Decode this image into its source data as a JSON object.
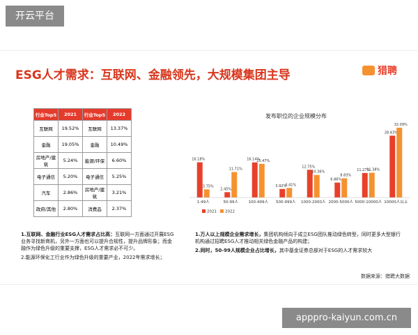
{
  "watermark": "开云平台",
  "footer_url": "apppro-kaiyun.com.cn",
  "title": "ESG人才需求：互联网、金融领先，大规模集团主导",
  "logo": "猎聘",
  "table": {
    "header": [
      "行业Top5",
      "2021",
      "行业Top5",
      "2022"
    ],
    "rows": [
      [
        "互联网",
        "19.52%",
        "互联网",
        "13.37%"
      ],
      [
        "金融",
        "19.05%",
        "金融",
        "10.49%"
      ],
      [
        "房地产/建筑",
        "5.24%",
        "能源/环保",
        "6.60%"
      ],
      [
        "电子通信",
        "5.20%",
        "电子通信",
        "5.25%"
      ],
      [
        "汽车",
        "2.86%",
        "房地产/建筑",
        "3.21%"
      ],
      [
        "政府/其他",
        "2.80%",
        "消费品",
        "2.37%"
      ]
    ]
  },
  "chart_data": {
    "type": "bar",
    "title": "发布职位的企业规模分布",
    "categories": [
      "1-49人",
      "50-99人",
      "100-499人",
      "500-999人",
      "1000-2000人",
      "2000-5000人",
      "5000-10000人",
      "10000人以上"
    ],
    "series": [
      {
        "name": "2021",
        "color": "#e8402a",
        "values": [
          16.18,
          2.45,
          16.14,
          3.92,
          12.75,
          6.86,
          11.27,
          28.43
        ],
        "value_labels": [
          "16.18%",
          "2.45%",
          "16.14%",
          "3.92%",
          "12.75%",
          "6.86%",
          "11.27%",
          "28.43%"
        ]
      },
      {
        "name": "2022",
        "color": "#f5922f",
        "values": [
          3.75,
          11.71,
          15.47,
          4.41,
          10.36,
          8.83,
          11.38,
          32.09
        ],
        "value_labels": [
          "3.75%",
          "11.71%",
          "15.47%",
          "4.41%",
          "10.36%",
          "8.83%",
          "11.38%",
          "32.09%"
        ]
      }
    ],
    "legend": "bottom-left"
  },
  "notes_left": [
    {
      "bold": "1.互联网、金融行业ESG人才需求占比高：",
      "text": "互联网一方面通过开展ESG业务寻找新商机，另外一方面也可以提升合规性，提升品牌形象；而金融作为绿色升级的重要支撑，ESG人才需求必不可少。"
    },
    {
      "bold": "",
      "text": "2.能源环保化工行业作为绿色升级的重要产业，2022年需求增长；"
    }
  ],
  "notes_right": [
    {
      "bold": "1.万人以上规模企业需求增长，",
      "text": "集团机构倾向于成立ESG团队推动绿色转型，同时更多大型银行机构通过招聘ESG人才推动相关绿色金融产品的构建；"
    },
    {
      "bold": "2.同时，50-99人规模企业占比增长，",
      "text": "其中基金证券总部对于ESG的人才需求较大"
    }
  ],
  "source": "数据来源：猎聘大数据"
}
